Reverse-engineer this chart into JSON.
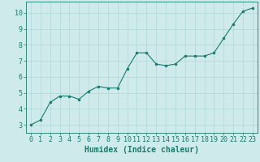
{
  "x": [
    0,
    1,
    2,
    3,
    4,
    5,
    6,
    7,
    8,
    9,
    10,
    11,
    12,
    13,
    14,
    15,
    16,
    17,
    18,
    19,
    20,
    21,
    22,
    23
  ],
  "y": [
    3.0,
    3.3,
    4.4,
    4.8,
    4.8,
    4.6,
    5.1,
    5.4,
    5.3,
    5.3,
    6.5,
    7.5,
    7.5,
    6.8,
    6.7,
    6.8,
    7.3,
    7.3,
    7.3,
    7.5,
    8.4,
    9.3,
    10.1,
    10.3
  ],
  "line_color": "#1a7a6e",
  "marker_color": "#1a7a6e",
  "bg_color": "#ceeaea",
  "grid_color": "#b0d8d8",
  "xlabel": "Humidex (Indice chaleur)",
  "xlim": [
    -0.5,
    23.5
  ],
  "ylim": [
    2.5,
    10.7
  ],
  "yticks": [
    3,
    4,
    5,
    6,
    7,
    8,
    9,
    10
  ],
  "xticks": [
    0,
    1,
    2,
    3,
    4,
    5,
    6,
    7,
    8,
    9,
    10,
    11,
    12,
    13,
    14,
    15,
    16,
    17,
    18,
    19,
    20,
    21,
    22,
    23
  ],
  "tick_color": "#1a7a6e",
  "xlabel_fontsize": 7,
  "tick_fontsize": 6
}
